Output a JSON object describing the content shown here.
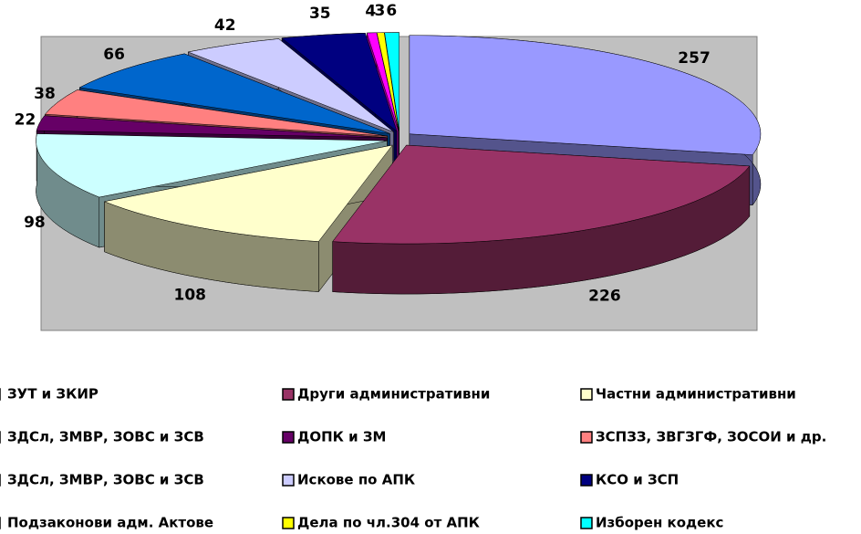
{
  "chart_data": {
    "type": "pie",
    "series": [
      {
        "name": "ЗУТ и ЗКИР",
        "color": "#9999ff",
        "values": [
          257
        ]
      },
      {
        "name": "Други административни",
        "color": "#993366",
        "values": [
          226
        ]
      },
      {
        "name": "Частни административни",
        "color": "#ffffcc",
        "values": [
          108
        ]
      },
      {
        "name": "ЗДСл, ЗМВР, ЗОВС и ЗСВ",
        "color": "#ccffff",
        "values": [
          98
        ]
      },
      {
        "name": "ДОПК и ЗМ",
        "color": "#660066",
        "values": [
          22
        ]
      },
      {
        "name": "ЗСПЗЗ, ЗВГЗГФ, ЗОСОИ и др.",
        "color": "#ff8080",
        "values": [
          38
        ]
      },
      {
        "name": "ЗДСл, ЗМВР, ЗОВС и ЗСВ",
        "color": "#0066cc",
        "values": [
          66
        ]
      },
      {
        "name": "Искове по АПК",
        "color": "#ccccff",
        "values": [
          42
        ]
      },
      {
        "name": "КСО и ЗСП",
        "color": "#000080",
        "values": [
          35
        ]
      },
      {
        "name": "Подзаконови адм. Актове",
        "color": "#ff00ff",
        "values": [
          4
        ]
      },
      {
        "name": "Дела по чл.304 от АПК",
        "color": "#ffff00",
        "values": [
          3
        ]
      },
      {
        "name": "Изборен кодекс",
        "color": "#00ffff",
        "values": [
          6
        ]
      }
    ],
    "legend": "bottom"
  }
}
